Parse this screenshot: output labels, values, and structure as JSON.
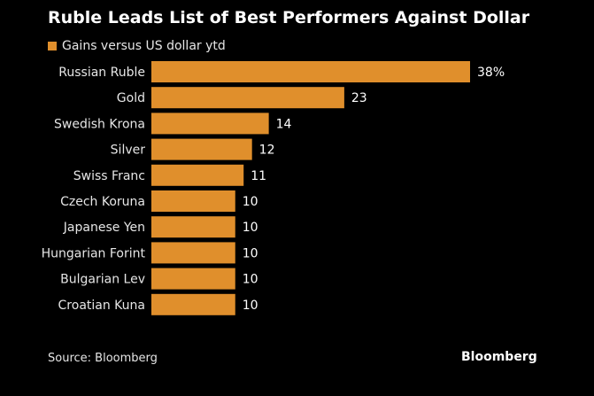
{
  "colors": {
    "background": "#000000",
    "bar": "#E08F2C"
  },
  "footer": {
    "source": "Source: Bloomberg",
    "brand": "Bloomberg"
  },
  "chart_data": {
    "type": "bar",
    "orientation": "horizontal",
    "title": "Ruble Leads List of Best Performers Against Dollar",
    "legend": [
      "Gains versus US dollar ytd"
    ],
    "legend_position": "top-left",
    "categories": [
      "Russian Ruble",
      "Gold",
      "Swedish Krona",
      "Silver",
      "Swiss Franc",
      "Czech Koruna",
      "Japanese Yen",
      "Hungarian Forint",
      "Bulgarian Lev",
      "Croatian Kuna"
    ],
    "series": [
      {
        "name": "Gains versus US dollar ytd",
        "values": [
          38,
          23,
          14,
          12,
          11,
          10,
          10,
          10,
          10,
          10
        ]
      }
    ],
    "value_labels": [
      "38%",
      "23",
      "14",
      "12",
      "11",
      "10",
      "10",
      "10",
      "10",
      "10"
    ],
    "xlim": [
      0,
      38
    ],
    "xlabel": "",
    "ylabel": "",
    "grid": false
  }
}
